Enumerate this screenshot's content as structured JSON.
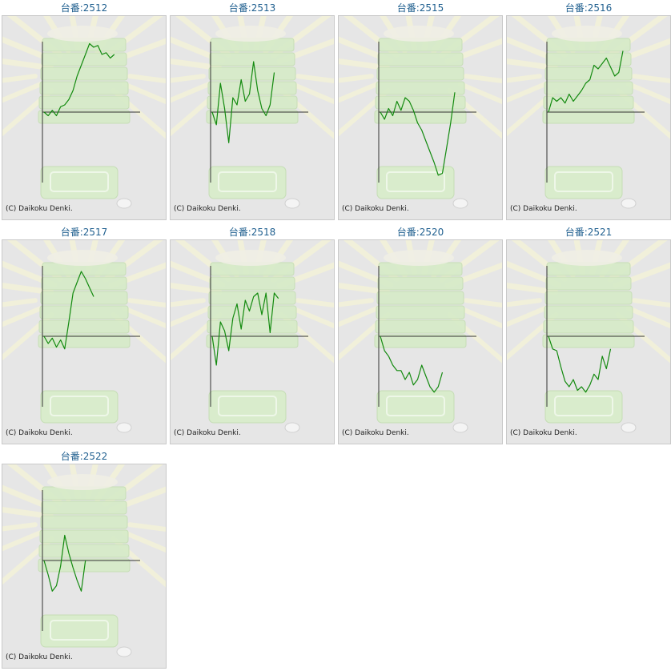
{
  "copyright": "(C) Daikoku Denki.",
  "colors": {
    "title": "#1f5f8f",
    "line": "#138a0f",
    "axis": "#333333",
    "panel": "#e6e6e6"
  },
  "panels": [
    {
      "title": "台番:2512",
      "machine": "2512"
    },
    {
      "title": "台番:2513",
      "machine": "2513"
    },
    {
      "title": "台番:2515",
      "machine": "2515"
    },
    {
      "title": "台番:2516",
      "machine": "2516"
    },
    {
      "title": "台番:2517",
      "machine": "2517"
    },
    {
      "title": "台番:2518",
      "machine": "2518"
    },
    {
      "title": "台番:2520",
      "machine": "2520"
    },
    {
      "title": "台番:2521",
      "machine": "2521"
    },
    {
      "title": "台番:2522",
      "machine": "2522"
    }
  ],
  "chart_data": [
    {
      "type": "line",
      "title": "台番:2512",
      "y": [
        0,
        -0.1,
        0.05,
        -0.1,
        0.15,
        0.2,
        0.35,
        0.6,
        1.0,
        1.3,
        1.6,
        1.9,
        1.8,
        1.85,
        1.6,
        1.65,
        1.5,
        1.6
      ]
    },
    {
      "type": "line",
      "title": "台番:2513",
      "y": [
        0,
        -0.35,
        0.8,
        0.1,
        -0.85,
        0.4,
        0.2,
        0.9,
        0.3,
        0.5,
        1.4,
        0.6,
        0.1,
        -0.1,
        0.2,
        1.1
      ]
    },
    {
      "type": "line",
      "title": "台番:2515",
      "y": [
        0,
        -0.2,
        0.1,
        -0.1,
        0.3,
        0.05,
        0.4,
        0.3,
        0.05,
        -0.3,
        -0.5,
        -0.8,
        -1.1,
        -1.4,
        -1.75,
        -1.7,
        -1.0,
        -0.3,
        0.55
      ]
    },
    {
      "type": "line",
      "title": "台番:2516",
      "y": [
        0,
        0.4,
        0.3,
        0.4,
        0.25,
        0.5,
        0.3,
        0.45,
        0.6,
        0.8,
        0.9,
        1.3,
        1.2,
        1.35,
        1.5,
        1.25,
        1.0,
        1.1,
        1.7
      ]
    },
    {
      "type": "line",
      "title": "台番:2517",
      "y": [
        0,
        -0.2,
        -0.05,
        -0.3,
        -0.1,
        -0.35,
        0.4,
        1.2,
        1.5,
        1.8,
        1.6,
        1.35,
        1.1
      ]
    },
    {
      "type": "line",
      "title": "台番:2518",
      "y": [
        0,
        -0.8,
        0.4,
        0.15,
        -0.4,
        0.5,
        0.9,
        0.2,
        1.0,
        0.7,
        1.1,
        1.2,
        0.6,
        1.2,
        0.1,
        1.2,
        1.05
      ]
    },
    {
      "type": "line",
      "title": "台番:2520",
      "y": [
        0,
        -0.4,
        -0.55,
        -0.8,
        -0.95,
        -0.95,
        -1.2,
        -1.0,
        -1.35,
        -1.2,
        -0.8,
        -1.1,
        -1.4,
        -1.55,
        -1.4,
        -1.0
      ]
    },
    {
      "type": "line",
      "title": "台番:2521",
      "y": [
        0,
        -0.35,
        -0.4,
        -0.85,
        -1.25,
        -1.4,
        -1.2,
        -1.5,
        -1.4,
        -1.55,
        -1.35,
        -1.05,
        -1.2,
        -0.55,
        -0.9,
        -0.35
      ]
    },
    {
      "type": "line",
      "title": "台番:2522",
      "y": [
        0,
        -0.4,
        -0.85,
        -0.7,
        -0.15,
        0.7,
        0.2,
        -0.2,
        -0.55,
        -0.85,
        0.0
      ]
    }
  ]
}
